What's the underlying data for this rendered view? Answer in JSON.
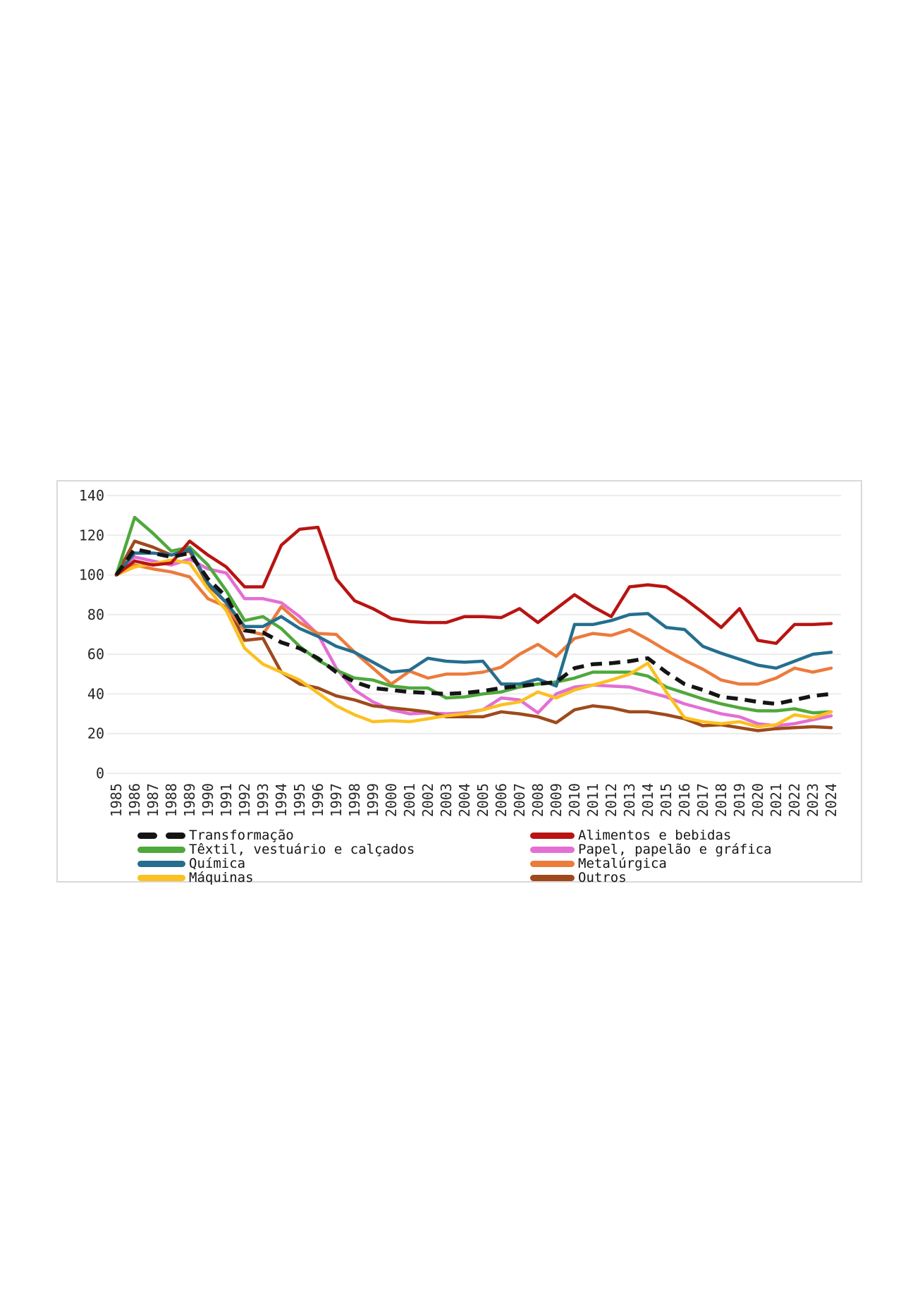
{
  "chart_data": {
    "type": "line",
    "title": "",
    "xlabel": "",
    "ylabel": "",
    "ylim": [
      0,
      140
    ],
    "y_ticks": [
      0,
      20,
      40,
      60,
      80,
      100,
      120,
      140
    ],
    "grid": true,
    "legend_position": "bottom-two-columns",
    "x": [
      1985,
      1986,
      1987,
      1988,
      1989,
      1990,
      1991,
      1992,
      1993,
      1994,
      1995,
      1996,
      1997,
      1998,
      1999,
      2000,
      2001,
      2002,
      2003,
      2004,
      2005,
      2006,
      2007,
      2008,
      2009,
      2010,
      2011,
      2012,
      2013,
      2014,
      2015,
      2016,
      2017,
      2018,
      2019,
      2020,
      2021,
      2022,
      2023,
      2024
    ],
    "series": [
      {
        "name": "Transformação",
        "color": "#141414",
        "dashed": true,
        "values": [
          100,
          113,
          111,
          109,
          111,
          98,
          89,
          72,
          71,
          66,
          63,
          58,
          51,
          46,
          43,
          42,
          41,
          40.5,
          40,
          40.5,
          41.5,
          43,
          44,
          45,
          46,
          53,
          55,
          55.5,
          56.5,
          58,
          51,
          45,
          42,
          38.5,
          37.5,
          36,
          35,
          37,
          39,
          40
        ]
      },
      {
        "name": "Alimentos e bebidas",
        "color": "#B81412",
        "dashed": false,
        "values": [
          100,
          107,
          105,
          106,
          117,
          110,
          104,
          94,
          94,
          115,
          123,
          124,
          98,
          87,
          83,
          78,
          76.5,
          76,
          76,
          79,
          79,
          78.5,
          83,
          76,
          83,
          90,
          84,
          79,
          94,
          95,
          94,
          88,
          81,
          73.5,
          83,
          67,
          65.5,
          75,
          75,
          75.5
        ]
      },
      {
        "name": "Têxtil, vestuário e calçados",
        "color": "#4FA83D",
        "dashed": false,
        "values": [
          100,
          129,
          121,
          112,
          114,
          105,
          92,
          77,
          79,
          73,
          64,
          57,
          52,
          48,
          47,
          44,
          43,
          43,
          38,
          38.5,
          40,
          41,
          43.5,
          45,
          46,
          48,
          51,
          51,
          51,
          49,
          43.5,
          40.5,
          37.5,
          35,
          33,
          31.5,
          31.5,
          32.5,
          30.5,
          31
        ]
      },
      {
        "name": "Papel, papelão e gráfica",
        "color": "#E36FD3",
        "dashed": false,
        "values": [
          100,
          109,
          107,
          105,
          108,
          103,
          101,
          88,
          88,
          86,
          79,
          70,
          53,
          42,
          36,
          32,
          30,
          30.5,
          30,
          30.5,
          32,
          38,
          37,
          30.5,
          40,
          43.5,
          44.5,
          44,
          43.5,
          41,
          38.5,
          35,
          32.5,
          30,
          28.5,
          25,
          24,
          25,
          27,
          29
        ]
      },
      {
        "name": "Química",
        "color": "#256E8E",
        "dashed": false,
        "values": [
          100,
          111,
          111,
          110,
          113,
          96,
          86,
          74,
          74,
          79,
          73,
          69,
          64,
          61,
          56,
          51,
          52,
          58,
          56.5,
          56,
          56.5,
          45,
          45,
          47.5,
          44,
          75,
          75,
          77,
          80,
          80.5,
          73.5,
          72.5,
          64,
          60.5,
          57.5,
          54.5,
          53,
          56.5,
          60,
          61
        ]
      },
      {
        "name": "Metalúrgica",
        "color": "#EC7B3C",
        "dashed": false,
        "values": [
          100,
          105,
          103,
          101.5,
          99,
          88,
          84,
          72,
          70,
          84,
          76,
          70.5,
          70,
          61,
          53,
          45,
          51.5,
          48,
          50,
          50,
          51,
          53.5,
          60,
          65,
          59,
          68,
          70.5,
          69.5,
          72.5,
          67.5,
          62,
          57,
          52.5,
          47,
          45,
          45,
          48,
          53,
          51,
          53
        ]
      },
      {
        "name": "Máquinas",
        "color": "#FBC021",
        "dashed": false,
        "values": [
          100,
          104,
          105.5,
          107.5,
          106,
          93,
          82,
          63,
          55,
          51,
          47,
          40.5,
          34,
          29.5,
          26,
          26.5,
          26,
          27.5,
          29,
          30,
          32,
          34.5,
          36,
          41,
          38,
          42,
          44.5,
          47,
          50,
          55.5,
          41,
          28,
          26,
          25,
          26,
          23.5,
          24.5,
          29.5,
          28,
          31
        ]
      },
      {
        "name": "Outros",
        "color": "#9E4A1D",
        "dashed": false,
        "values": [
          100,
          117,
          114,
          110,
          112,
          95,
          86,
          67,
          68,
          51,
          45,
          43,
          39,
          37,
          34,
          33,
          32,
          31,
          28.5,
          28.5,
          28.5,
          31,
          30,
          28.5,
          25.5,
          32,
          34,
          33,
          31,
          31,
          29.5,
          27.5,
          24,
          24.5,
          23,
          21.5,
          22.5,
          23,
          23.5,
          23
        ]
      }
    ],
    "draw_order": [
      3,
      7,
      5,
      2,
      6,
      4,
      1,
      0
    ],
    "legend_columns": [
      [
        0,
        2,
        4,
        6
      ],
      [
        1,
        3,
        5,
        7
      ]
    ]
  },
  "style": {
    "grid_color": "#ECECEC",
    "axis_label_color": "#262626",
    "box_border_color": "#D9D9D9"
  }
}
